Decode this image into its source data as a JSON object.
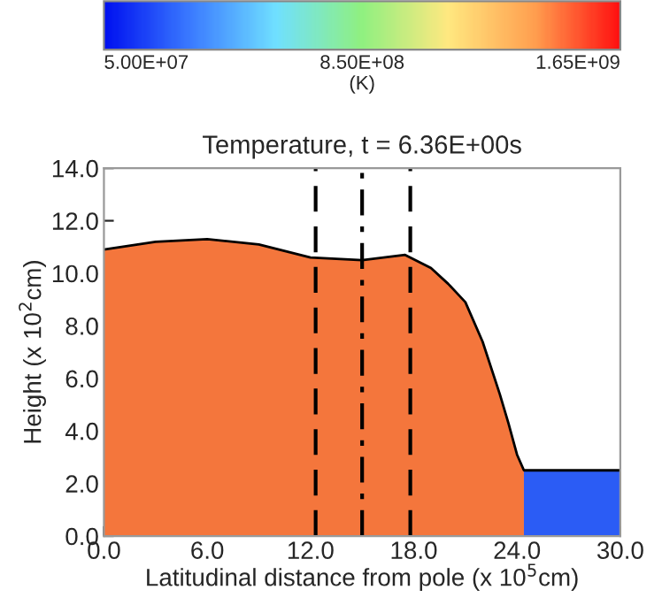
{
  "chart_data": {
    "type": "area",
    "title": "Temperature, t = 6.36E+00s",
    "xlabel": "Latitudinal distance from pole (x 10$^{5}$cm)",
    "ylabel": "Height (x 10$^{2}$cm)",
    "clabel": "(K)",
    "clim": [
      50000000,
      1650000000
    ],
    "cticks": [
      {
        "value": 50000000,
        "label": "5.00E+07"
      },
      {
        "value": 850000000,
        "label": "8.50E+08"
      },
      {
        "value": 1650000000,
        "label": "1.65E+09"
      }
    ],
    "series": [
      {
        "color": "#f4763c",
        "x": [
          0,
          3,
          6,
          9,
          12,
          15,
          17.5,
          19,
          20,
          21,
          22,
          23,
          23.5,
          24,
          24.4
        ],
        "values": [
          10.9,
          11.2,
          11.3,
          11.1,
          10.6,
          10.5,
          10.7,
          10.2,
          9.6,
          8.9,
          7.4,
          5.4,
          4.3,
          3.1,
          2.5
        ]
      },
      {
        "color": "#2b5cf5",
        "x": [
          24.4,
          30
        ],
        "values": [
          2.5,
          2.5
        ]
      },
      {
        "type": "line",
        "color": "#000000",
        "x": [
          0,
          3,
          6,
          9,
          12,
          15,
          17.5,
          19,
          20,
          21,
          22,
          23,
          23.5,
          24,
          24.4,
          30
        ],
        "values": [
          10.9,
          11.2,
          11.3,
          11.1,
          10.6,
          10.5,
          10.7,
          10.2,
          9.6,
          8.9,
          7.4,
          5.4,
          4.3,
          3.1,
          2.5,
          2.5
        ]
      }
    ],
    "xlim": [
      0,
      30
    ],
    "xticks": [
      {
        "value": 0,
        "label": "0.0"
      },
      {
        "value": 6,
        "label": "6.0"
      },
      {
        "value": 12,
        "label": "12.0"
      },
      {
        "value": 18,
        "label": "18.0"
      },
      {
        "value": 24,
        "label": "24.0"
      },
      {
        "value": 30,
        "label": "30.0"
      }
    ],
    "ylim": [
      0,
      14
    ],
    "yticks": [
      {
        "value": 0,
        "label": "0.0"
      },
      {
        "value": 2,
        "label": "2.0"
      },
      {
        "value": 4,
        "label": "4.0"
      },
      {
        "value": 6,
        "label": "6.0"
      },
      {
        "value": 8,
        "label": "8.0"
      },
      {
        "value": 10,
        "label": "10.0"
      },
      {
        "value": 12,
        "label": "12.0"
      },
      {
        "value": 14,
        "label": "14.0"
      }
    ],
    "ref_lines": [
      {
        "axis": "x",
        "value": 12.3,
        "color": "#000000",
        "line_style": "dashed"
      },
      {
        "axis": "x",
        "value": 15.0,
        "color": "#000000",
        "line_style": "dashdot"
      },
      {
        "axis": "x",
        "value": 17.8,
        "color": "#000000",
        "line_style": "dashed"
      }
    ],
    "grid": false,
    "legend": false
  }
}
